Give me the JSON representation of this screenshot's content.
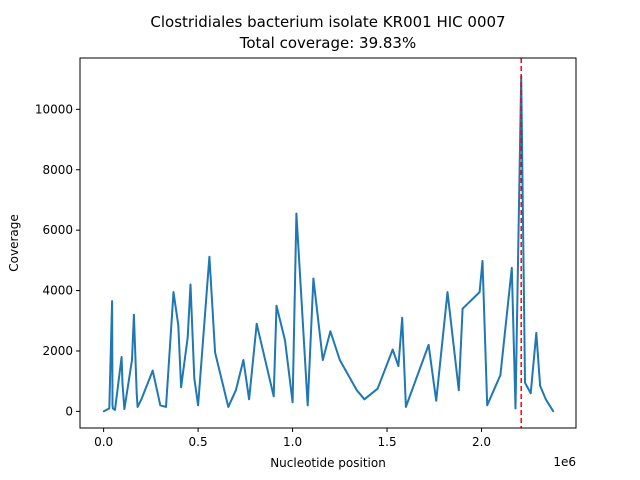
{
  "chart_data": {
    "type": "line",
    "title": "Clostridiales bacterium isolate KR001 HIC 0007",
    "subtitle": "Total coverage: 39.83%",
    "xlabel": "Nucleotide position",
    "ylabel": "Coverage",
    "x_offset_label": "1e6",
    "xlim": [
      -125000,
      2500000
    ],
    "ylim": [
      -550,
      11700
    ],
    "xticks": [
      0,
      500000,
      1000000,
      1500000,
      2000000
    ],
    "xtick_labels": [
      "0.0",
      "0.5",
      "1.0",
      "1.5",
      "2.0"
    ],
    "yticks": [
      0,
      2000,
      4000,
      6000,
      8000,
      10000
    ],
    "ytick_labels": [
      "0",
      "2000",
      "4000",
      "6000",
      "8000",
      "10000"
    ],
    "grid": false,
    "marker_line": {
      "x": 2210000,
      "style": "dashed",
      "color": "#ff0000"
    },
    "series": [
      {
        "color": "#1f77b4",
        "x": [
          0,
          30000,
          45000,
          47000,
          49000,
          60000,
          95000,
          100000,
          110000,
          150000,
          160000,
          175000,
          180000,
          200000,
          260000,
          300000,
          330000,
          370000,
          395000,
          410000,
          445000,
          460000,
          480000,
          500000,
          560000,
          590000,
          660000,
          700000,
          740000,
          770000,
          810000,
          900000,
          915000,
          960000,
          1000000,
          1020000,
          1080000,
          1110000,
          1160000,
          1200000,
          1250000,
          1340000,
          1380000,
          1450000,
          1530000,
          1560000,
          1580000,
          1600000,
          1720000,
          1760000,
          1820000,
          1880000,
          1900000,
          1990000,
          2005000,
          2030000,
          2100000,
          2160000,
          2180000,
          2210000,
          2230000,
          2260000,
          2290000,
          2310000,
          2340000,
          2380000
        ],
        "y": [
          0,
          100,
          3650,
          200,
          100,
          50,
          1800,
          900,
          80,
          1700,
          3200,
          600,
          150,
          400,
          1350,
          200,
          150,
          3950,
          2850,
          800,
          2450,
          4200,
          1100,
          200,
          5120,
          1950,
          150,
          700,
          1700,
          400,
          2900,
          500,
          3500,
          2350,
          300,
          6550,
          200,
          4400,
          1700,
          2650,
          1700,
          700,
          400,
          750,
          2050,
          1500,
          3100,
          150,
          2200,
          350,
          3950,
          700,
          3400,
          3950,
          4980,
          200,
          1200,
          4750,
          100,
          11100,
          950,
          600,
          2600,
          850,
          400,
          0
        ]
      }
    ]
  }
}
